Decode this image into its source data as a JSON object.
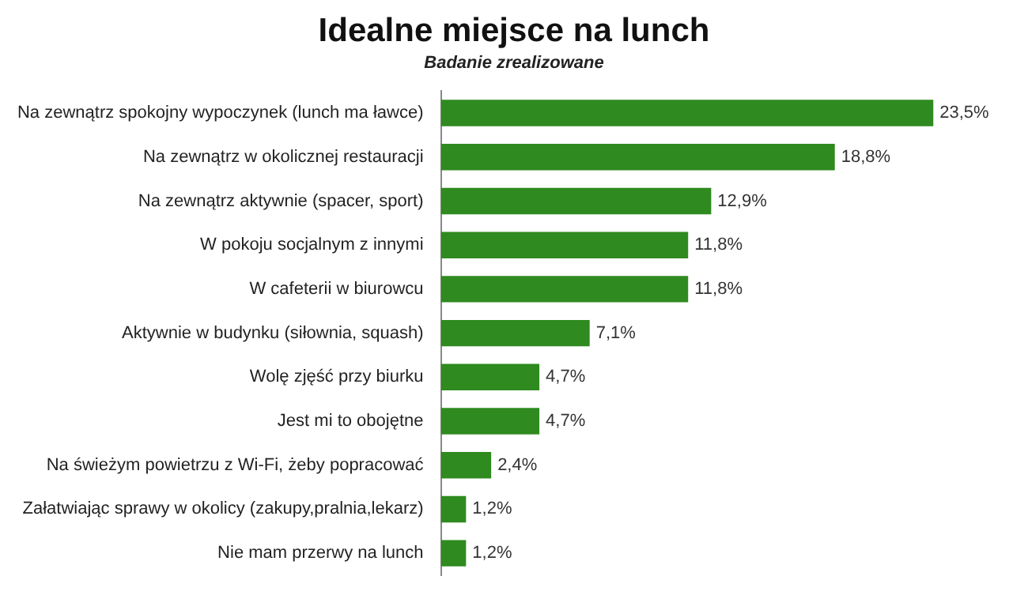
{
  "chart_data": {
    "type": "bar",
    "orientation": "horizontal",
    "title": "Idealne miejsce na lunch",
    "subtitle": "Badanie zrealizowane",
    "categories": [
      "Na zewnątrz spokojny wypoczynek (lunch ma ławce)",
      "Na zewnątrz w okolicznej restauracji",
      "Na zewnątrz aktywnie (spacer, sport)",
      "W pokoju socjalnym z innymi",
      "W cafeterii w biurowcu",
      "Aktywnie w budynku (siłownia, squash)",
      "Wolę zjęść przy biurku",
      "Jest mi to obojętne",
      "Na świeżym powietrzu z Wi-Fi, żeby popracować",
      "Załatwiając sprawy w okolicy (zakupy,pralnia,lekarz)",
      "Nie mam przerwy na lunch"
    ],
    "values": [
      23.5,
      18.8,
      12.9,
      11.8,
      11.8,
      7.1,
      4.7,
      4.7,
      2.4,
      1.2,
      1.2
    ],
    "value_labels": [
      "23,5%",
      "18,8%",
      "12,9%",
      "11,8%",
      "11,8%",
      "7,1%",
      "4,7%",
      "4,7%",
      "2,4%",
      "1,2%",
      "1,2%"
    ],
    "color": "#2f8a1f",
    "grid": false,
    "legend": false
  }
}
